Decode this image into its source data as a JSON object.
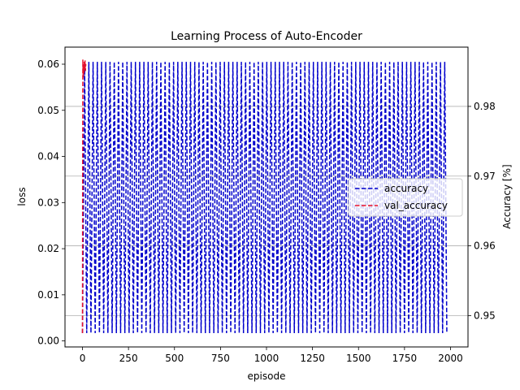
{
  "chart_data": {
    "type": "line",
    "title": "Learning Process of Auto-Encoder",
    "xlabel": "episode",
    "ylabel": "loss",
    "y2label": "Accuracy [%]",
    "xlim": [
      -95,
      2095
    ],
    "ylim": [
      -0.0013,
      0.0637
    ],
    "y2lim": [
      0.9455,
      0.9885
    ],
    "x_ticks": [
      0,
      250,
      500,
      750,
      1000,
      1250,
      1500,
      1750,
      2000
    ],
    "y_ticks": [
      0.0,
      0.01,
      0.02,
      0.03,
      0.04,
      0.05,
      0.06
    ],
    "y2_ticks": [
      0.95,
      0.96,
      0.97,
      0.98
    ],
    "grid": "right-axis horizontal",
    "legend": {
      "placement": "center-right"
    },
    "series": [
      {
        "name": "accuracy",
        "color": "#0000cc",
        "style": "dashed",
        "axis": "left",
        "pattern": "oscillating",
        "x_start": 0,
        "x_end": 1980,
        "cycles": 86,
        "y_max": 0.0605,
        "y_min": 0.0017
      },
      {
        "name": "val_accuracy",
        "color": "#e8102a",
        "style": "dashed",
        "axis": "left",
        "x": [
          0,
          1,
          2,
          4,
          6,
          8,
          10,
          12,
          14,
          16,
          18
        ],
        "y": [
          0.0017,
          0.036,
          0.061,
          0.057,
          0.06,
          0.058,
          0.0605,
          0.059,
          0.0608,
          0.0585,
          0.06
        ]
      }
    ]
  }
}
